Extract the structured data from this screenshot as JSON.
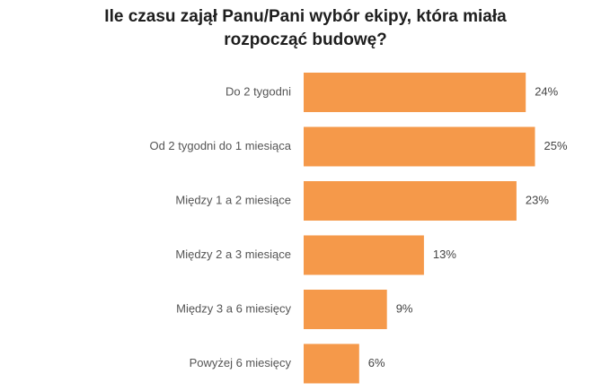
{
  "chart_data": {
    "type": "bar",
    "orientation": "horizontal",
    "title": "Ile czasu zajął Panu/Pani wybór ekipy, która miała rozpocząć budowę?",
    "title_lines": [
      "Ile czasu zajął Panu/Pani wybór ekipy, która miała",
      "rozpocząć budowę?"
    ],
    "categories": [
      "Do 2 tygodni",
      "Od 2 tygodni do 1 miesiąca",
      "Między 1 a 2 miesiące",
      "Między 2 a 3 miesiące",
      "Między 3 a 6 miesięcy",
      "Powyżej 6 miesięcy"
    ],
    "values": [
      24,
      25,
      23,
      13,
      9,
      6
    ],
    "value_labels": [
      "24%",
      "25%",
      "23%",
      "13%",
      "9%",
      "6%"
    ],
    "xlabel": "",
    "ylabel": "",
    "grid": false,
    "legend": "none",
    "bar_color": "#f5994a"
  }
}
